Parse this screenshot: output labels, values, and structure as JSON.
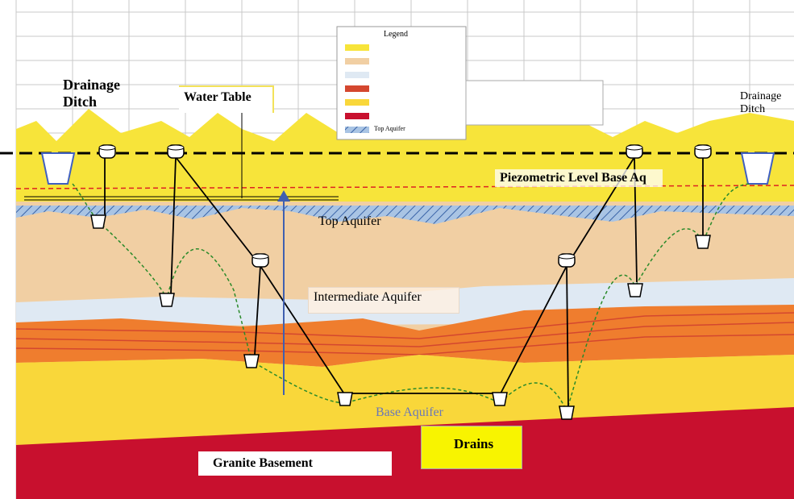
{
  "labels": {
    "left_ditch": "Drainage Ditch",
    "water_table": "Water Table",
    "right_ditch": "Drainage Ditch",
    "piezometric": "Piezometric Level Base Aq",
    "top_aquifer": "Top Aquifer",
    "intermediate_aquifer": "Intermediate Aquifer",
    "base_aquifer": "Base Aquifer",
    "drains": "Drains",
    "granite": "Granite Basement",
    "legend_title": "Legend",
    "legend_top_aquifer": "Top Aquifer"
  }
}
